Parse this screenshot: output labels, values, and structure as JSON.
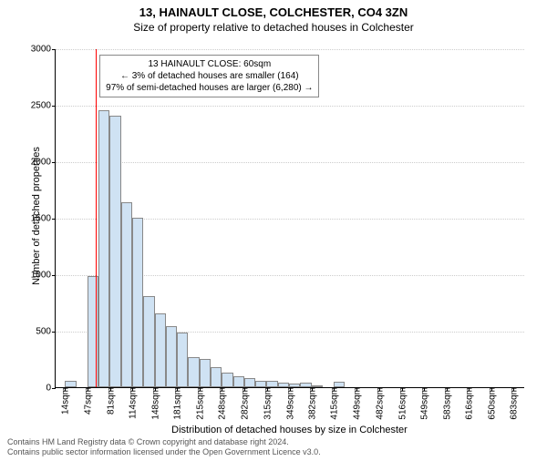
{
  "header": {
    "title": "13, HAINAULT CLOSE, COLCHESTER, CO4 3ZN",
    "subtitle": "Size of property relative to detached houses in Colchester"
  },
  "chart": {
    "type": "histogram",
    "ylabel": "Number of detached properties",
    "xlabel": "Distribution of detached houses by size in Colchester",
    "ylim": [
      0,
      3000
    ],
    "yticks": [
      0,
      500,
      1000,
      1500,
      2000,
      2500,
      3000
    ],
    "xticks": [
      14,
      47,
      81,
      114,
      148,
      181,
      215,
      248,
      282,
      315,
      349,
      382,
      415,
      449,
      482,
      516,
      549,
      583,
      616,
      650,
      683
    ],
    "xtick_suffix": "sqm",
    "x_range": [
      0,
      700
    ],
    "bin_width": 16.7,
    "bin_start": 14,
    "values": [
      60,
      0,
      980,
      2450,
      2400,
      1640,
      1500,
      810,
      650,
      540,
      480,
      270,
      250,
      180,
      130,
      100,
      80,
      60,
      60,
      40,
      30,
      40,
      20,
      0,
      50,
      0,
      0,
      0,
      0,
      0,
      0,
      0,
      0,
      0,
      0,
      0,
      0,
      0,
      0,
      0,
      0
    ],
    "bar_fill": "#cfe2f3",
    "bar_stroke": "#888888",
    "grid_color": "#cccccc",
    "background": "#ffffff",
    "marker": {
      "x": 60,
      "color": "#ff0000"
    },
    "info_box": {
      "line1": "13 HAINAULT CLOSE: 60sqm",
      "line2": "← 3% of detached houses are smaller (164)",
      "line3": "97% of semi-detached houses are larger (6,280) →"
    }
  },
  "footer": {
    "line1": "Contains HM Land Registry data © Crown copyright and database right 2024.",
    "line2": "Contains public sector information licensed under the Open Government Licence v3.0."
  }
}
